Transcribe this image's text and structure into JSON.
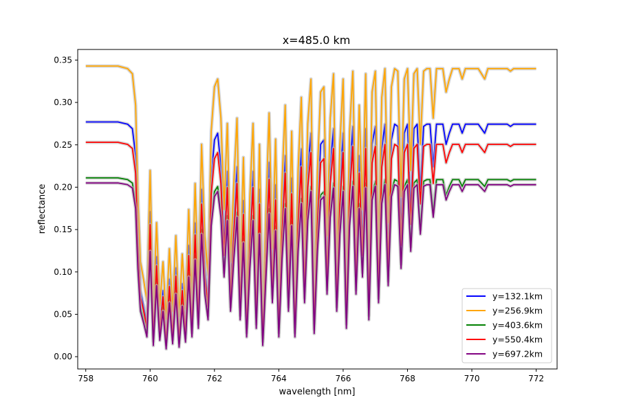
{
  "chart_data": {
    "type": "line",
    "title": "x=485.0 km",
    "xlabel": "wavelength [nm]",
    "ylabel": "reflectance",
    "xlim": [
      757.75,
      772.65
    ],
    "ylim": [
      -0.0145,
      0.3625
    ],
    "xticks": [
      758,
      760,
      762,
      764,
      766,
      768,
      770,
      772
    ],
    "xtick_labels": [
      "758",
      "760",
      "762",
      "764",
      "766",
      "768",
      "770",
      "772"
    ],
    "yticks": [
      0.0,
      0.05,
      0.1,
      0.15,
      0.2,
      0.25,
      0.3,
      0.35
    ],
    "ytick_labels": [
      "0.00",
      "0.05",
      "0.10",
      "0.15",
      "0.20",
      "0.25",
      "0.30",
      "0.35"
    ],
    "grid": false,
    "legend_position": "lower right",
    "band_color": "#bbbbbb",
    "series": [
      {
        "name": "y=132.1km",
        "color": "#0000ff",
        "base": 0.277,
        "min": 0.012
      },
      {
        "name": "y=256.9km",
        "color": "#ffa500",
        "base": 0.343,
        "min": 0.035
      },
      {
        "name": "y=403.6km",
        "color": "#008000",
        "base": 0.211,
        "min": 0.008
      },
      {
        "name": "y=550.4km",
        "color": "#ff0000",
        "base": 0.253,
        "min": 0.01
      },
      {
        "name": "y=697.2km",
        "color": "#800080",
        "base": 0.205,
        "min": 0.003
      }
    ],
    "absorption_profile": {
      "x": [
        758.0,
        759.0,
        759.3,
        759.45,
        759.55,
        759.62,
        759.7,
        759.8,
        759.9,
        760.0,
        760.1,
        760.2,
        760.3,
        760.4,
        760.5,
        760.6,
        760.7,
        760.8,
        760.9,
        761.0,
        761.1,
        761.2,
        761.3,
        761.4,
        761.5,
        761.6,
        761.7,
        761.8,
        761.9,
        762.0,
        762.1,
        762.2,
        762.3,
        762.4,
        762.5,
        762.6,
        762.7,
        762.8,
        762.9,
        763.0,
        763.1,
        763.2,
        763.3,
        763.4,
        763.5,
        763.6,
        763.7,
        763.8,
        763.9,
        764.0,
        764.1,
        764.2,
        764.3,
        764.4,
        764.5,
        764.6,
        764.7,
        764.8,
        764.9,
        765.0,
        765.1,
        765.2,
        765.3,
        765.4,
        765.5,
        765.6,
        765.7,
        765.8,
        765.9,
        766.0,
        766.1,
        766.2,
        766.3,
        766.4,
        766.5,
        766.6,
        766.7,
        766.8,
        766.9,
        767.0,
        767.1,
        767.2,
        767.3,
        767.4,
        767.5,
        767.6,
        767.7,
        767.8,
        767.9,
        768.0,
        768.1,
        768.2,
        768.3,
        768.4,
        768.5,
        768.6,
        768.7,
        768.8,
        768.9,
        769.0,
        769.1,
        769.2,
        769.3,
        769.4,
        769.5,
        769.6,
        769.7,
        769.8,
        769.9,
        770.0,
        770.1,
        770.2,
        770.3,
        770.4,
        770.5,
        770.6,
        770.7,
        770.8,
        770.9,
        771.0,
        771.1,
        771.2,
        771.3,
        771.4,
        771.5,
        771.6,
        771.7,
        771.8,
        771.9,
        772.0
      ],
      "r": [
        1.0,
        1.0,
        0.99,
        0.97,
        0.85,
        0.5,
        0.25,
        0.18,
        0.1,
        0.6,
        0.05,
        0.4,
        0.08,
        0.25,
        0.03,
        0.3,
        0.06,
        0.35,
        0.04,
        0.28,
        0.07,
        0.45,
        0.1,
        0.55,
        0.15,
        0.7,
        0.35,
        0.2,
        0.75,
        0.92,
        0.95,
        0.8,
        0.45,
        0.78,
        0.25,
        0.55,
        0.8,
        0.2,
        0.65,
        0.1,
        0.5,
        0.78,
        0.15,
        0.7,
        0.05,
        0.45,
        0.82,
        0.3,
        0.72,
        0.1,
        0.55,
        0.85,
        0.25,
        0.75,
        0.1,
        0.6,
        0.88,
        0.3,
        0.78,
        0.95,
        0.12,
        0.6,
        0.9,
        0.92,
        0.35,
        0.8,
        0.97,
        0.25,
        0.7,
        0.95,
        0.15,
        0.75,
        0.98,
        0.35,
        0.85,
        0.45,
        0.97,
        0.2,
        0.9,
        0.98,
        0.3,
        0.88,
        0.99,
        0.4,
        0.92,
        0.99,
        0.98,
        0.5,
        0.95,
        0.99,
        0.6,
        0.97,
        0.99,
        0.7,
        0.98,
        0.99,
        0.99,
        0.8,
        0.99,
        0.99,
        0.99,
        0.9,
        0.95,
        0.99,
        0.99,
        0.99,
        0.95,
        0.99,
        0.99,
        0.99,
        0.99,
        0.99,
        0.97,
        0.95,
        0.99,
        0.99,
        0.99,
        0.99,
        0.99,
        0.99,
        0.99,
        0.98,
        0.99,
        0.99,
        0.99,
        0.99,
        0.99,
        0.99,
        0.99,
        0.99
      ]
    }
  }
}
